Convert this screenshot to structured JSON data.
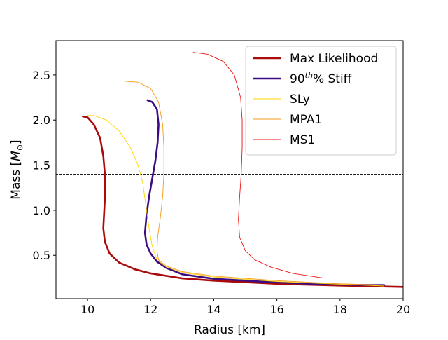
{
  "chart_data": {
    "type": "line",
    "xlabel": "Radius [km]",
    "ylabel_text": "Mass [",
    "ylabel_unit": "M",
    "ylabel_sub": "⊙",
    "ylabel_close": "]",
    "xlim": [
      9,
      20
    ],
    "ylim": [
      0.02,
      2.88
    ],
    "xticks": [
      10,
      12,
      14,
      16,
      18,
      20
    ],
    "yticks": [
      0.5,
      1.0,
      1.5,
      2.0,
      2.5
    ],
    "xtick_labels": [
      "10",
      "12",
      "14",
      "16",
      "18",
      "20"
    ],
    "ytick_labels": [
      "0.5",
      "1.0",
      "1.5",
      "2.0",
      "2.5"
    ],
    "reference_line": {
      "y": 1.4,
      "style": "dashed",
      "color": "#000000"
    },
    "grid": false,
    "legend_position": "top-right",
    "series": [
      {
        "name": "Max Likelihood",
        "color": "#aa0a0a",
        "width": "thick",
        "points": [
          [
            20.0,
            0.15
          ],
          [
            18.0,
            0.165
          ],
          [
            16.0,
            0.185
          ],
          [
            14.0,
            0.22
          ],
          [
            13.0,
            0.245
          ],
          [
            12.0,
            0.3
          ],
          [
            11.5,
            0.345
          ],
          [
            11.0,
            0.42
          ],
          [
            10.7,
            0.52
          ],
          [
            10.55,
            0.65
          ],
          [
            10.5,
            0.8
          ],
          [
            10.53,
            1.0
          ],
          [
            10.56,
            1.2
          ],
          [
            10.55,
            1.4
          ],
          [
            10.5,
            1.6
          ],
          [
            10.4,
            1.8
          ],
          [
            10.2,
            1.95
          ],
          [
            10.0,
            2.03
          ],
          [
            9.85,
            2.04
          ]
        ]
      },
      {
        "name": "90th% Stiff",
        "name_base": "90",
        "name_sup": "th",
        "name_rest": "% Stiff",
        "color": "#3c0c82",
        "width": "thick",
        "points": [
          [
            19.4,
            0.17
          ],
          [
            18.0,
            0.175
          ],
          [
            16.0,
            0.2
          ],
          [
            14.0,
            0.24
          ],
          [
            13.0,
            0.29
          ],
          [
            12.5,
            0.36
          ],
          [
            12.2,
            0.43
          ],
          [
            12.0,
            0.52
          ],
          [
            11.87,
            0.62
          ],
          [
            11.82,
            0.75
          ],
          [
            11.87,
            0.95
          ],
          [
            11.95,
            1.15
          ],
          [
            12.05,
            1.35
          ],
          [
            12.15,
            1.55
          ],
          [
            12.22,
            1.75
          ],
          [
            12.25,
            1.95
          ],
          [
            12.2,
            2.12
          ],
          [
            12.05,
            2.2
          ],
          [
            11.9,
            2.22
          ]
        ]
      },
      {
        "name": "SLy",
        "color": "#ffd500",
        "width": "thin",
        "points": [
          [
            19.4,
            0.16
          ],
          [
            18.0,
            0.18
          ],
          [
            16.0,
            0.21
          ],
          [
            14.0,
            0.26
          ],
          [
            13.0,
            0.31
          ],
          [
            12.5,
            0.37
          ],
          [
            12.2,
            0.45
          ],
          [
            12.05,
            0.6
          ],
          [
            11.95,
            0.8
          ],
          [
            11.85,
            1.05
          ],
          [
            11.75,
            1.3
          ],
          [
            11.6,
            1.5
          ],
          [
            11.35,
            1.7
          ],
          [
            11.0,
            1.88
          ],
          [
            10.6,
            2.0
          ],
          [
            10.2,
            2.05
          ],
          [
            10.0,
            2.05
          ]
        ]
      },
      {
        "name": "MPA1",
        "color": "#f59a1a",
        "width": "thin",
        "points": [
          [
            19.4,
            0.17
          ],
          [
            18.0,
            0.185
          ],
          [
            16.0,
            0.22
          ],
          [
            14.0,
            0.27
          ],
          [
            13.0,
            0.32
          ],
          [
            12.5,
            0.38
          ],
          [
            12.25,
            0.45
          ],
          [
            12.2,
            0.55
          ],
          [
            12.22,
            0.7
          ],
          [
            12.3,
            0.9
          ],
          [
            12.38,
            1.15
          ],
          [
            12.42,
            1.4
          ],
          [
            12.42,
            1.7
          ],
          [
            12.38,
            1.95
          ],
          [
            12.25,
            2.2
          ],
          [
            12.0,
            2.35
          ],
          [
            11.6,
            2.42
          ],
          [
            11.2,
            2.43
          ]
        ]
      },
      {
        "name": "MS1",
        "color": "#ee1111",
        "width": "thin",
        "points": [
          [
            17.45,
            0.25
          ],
          [
            16.5,
            0.3
          ],
          [
            15.8,
            0.37
          ],
          [
            15.3,
            0.45
          ],
          [
            15.0,
            0.55
          ],
          [
            14.82,
            0.7
          ],
          [
            14.78,
            0.9
          ],
          [
            14.82,
            1.15
          ],
          [
            14.87,
            1.4
          ],
          [
            14.9,
            1.7
          ],
          [
            14.9,
            2.0
          ],
          [
            14.85,
            2.25
          ],
          [
            14.65,
            2.5
          ],
          [
            14.3,
            2.65
          ],
          [
            13.8,
            2.73
          ],
          [
            13.35,
            2.75
          ]
        ]
      }
    ]
  }
}
